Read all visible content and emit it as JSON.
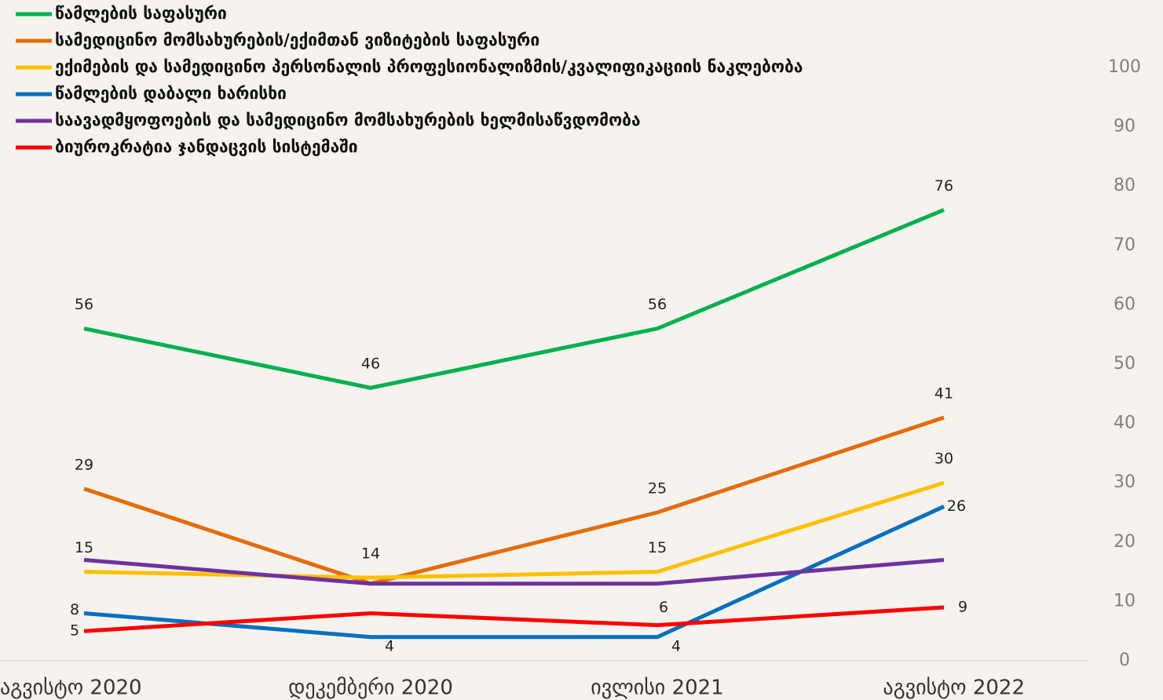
{
  "chart_data": {
    "type": "line",
    "categories": [
      "აგვისტო 2020",
      "დეკემბერი 2020",
      "ივლისი 2021",
      "აგვისტო 2022"
    ],
    "series": [
      {
        "name": "წამლების საფასური",
        "color": "#00b050",
        "values": [
          56,
          46,
          56,
          76
        ],
        "value_labels": [
          "56",
          "46",
          "56",
          "76"
        ]
      },
      {
        "name": "სამედიცინო მომსახურების/ექიმთან ვიზიტების საფასური",
        "color": "#e46c0a",
        "values": [
          29,
          13,
          25,
          41
        ],
        "value_labels": [
          "29",
          null,
          "25",
          "41"
        ]
      },
      {
        "name": "ექიმების და სამედიცინო პერსონალის პროფესიონალიზმის/კვალიფიკაციის ნაკლებობა",
        "color": "#ffc000",
        "values": [
          15,
          14,
          15,
          30
        ],
        "value_labels": [
          "15",
          "14",
          "15",
          "30"
        ]
      },
      {
        "name": "წამლების დაბალი ხარისხი",
        "color": "#0070c0",
        "values": [
          8,
          4,
          4,
          26
        ],
        "value_labels": [
          "8",
          "4",
          "4",
          "26"
        ]
      },
      {
        "name": "საავადმყოფოების და სამედიცინო მომსახურების ხელმისაწვდომობა",
        "color": "#7030a0",
        "values": [
          17,
          13,
          13,
          17
        ],
        "value_labels": [
          null,
          null,
          null,
          null
        ]
      },
      {
        "name": "ბიუროკრატია ჯანდაცვის სისტემაში",
        "color": "#ff0000",
        "values": [
          5,
          8,
          6,
          9
        ],
        "value_labels": [
          "5",
          null,
          "6",
          "9"
        ]
      }
    ],
    "ylim": [
      0,
      100
    ],
    "yticks": [
      0,
      10,
      20,
      30,
      40,
      50,
      60,
      70,
      80,
      90,
      100
    ],
    "y_axis_side": "right",
    "legend": "top-left",
    "grid": false
  }
}
